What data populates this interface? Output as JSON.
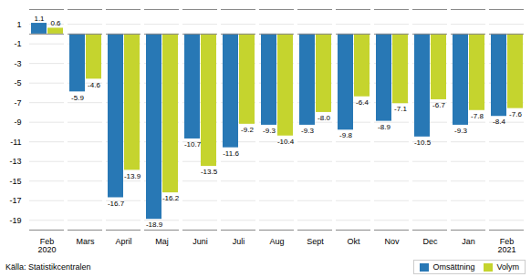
{
  "chart_data": {
    "type": "bar",
    "categories": [
      "Feb\n2020",
      "Mars",
      "April",
      "Maj",
      "Juni",
      "Juli",
      "Aug",
      "Sept",
      "Okt",
      "Nov",
      "Dec",
      "Jan",
      "Feb\n2021"
    ],
    "series": [
      {
        "name": "Omsättning",
        "color": "#2878b5",
        "values": [
          1.1,
          -5.9,
          -16.7,
          -18.9,
          -10.7,
          -11.6,
          -9.3,
          -9.3,
          -9.8,
          -8.9,
          -10.5,
          -9.3,
          -8.4
        ],
        "value_labels": [
          "1.1",
          "-5.9",
          "-16.7",
          "-18.9",
          "-10.7",
          "-11.6",
          "-9.3",
          "-9.3",
          "-9.8",
          "-8.9",
          "-10.5",
          "-9.3",
          "-8.4"
        ]
      },
      {
        "name": "Volym",
        "color": "#c5d42e",
        "values": [
          0.6,
          -4.6,
          -13.9,
          -16.2,
          -13.5,
          -9.2,
          -10.4,
          -8.0,
          -6.4,
          -7.1,
          -6.7,
          -7.8,
          -7.6
        ],
        "value_labels": [
          "0.6",
          "-4.6",
          "-13.9",
          "-16.2",
          "-13.5",
          "-9.2",
          "-10.4",
          "-8.0",
          "-6.4",
          "-7.1",
          "-6.7",
          "-7.8",
          "-7.6"
        ]
      }
    ],
    "ylim": [
      -20,
      2.5
    ],
    "yticks": [
      1,
      -1,
      -3,
      -5,
      -7,
      -9,
      -11,
      -13,
      -15,
      -17,
      -19
    ],
    "grid": true,
    "legend": "lower right",
    "data_labels": true,
    "annotations": [
      "Källa: Statistikcentralen"
    ]
  }
}
